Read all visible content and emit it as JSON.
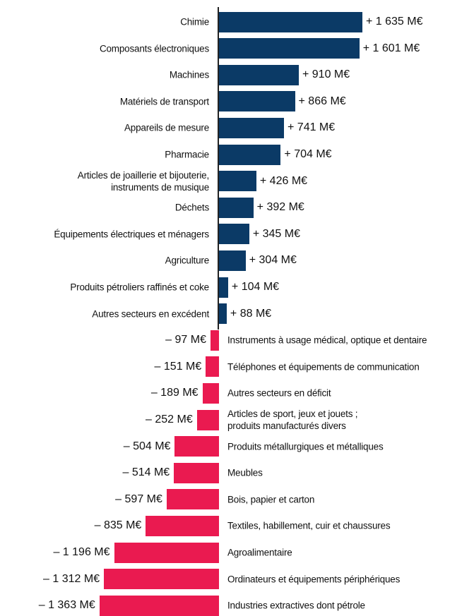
{
  "chart_data": {
    "type": "bar",
    "orientation": "horizontal",
    "color_positive": "#0b3a66",
    "color_negative": "#ea1a50",
    "categories": [
      "Chimie",
      "Composants électroniques",
      "Machines",
      "Matériels de transport",
      "Appareils de mesure",
      "Pharmacie",
      "Articles de joaillerie et bijouterie,\ninstruments de musique",
      "Déchets",
      "Équipements électriques et ménagers",
      "Agriculture",
      "Produits pétroliers raffinés et coke",
      "Autres secteurs en excédent",
      "Instruments à usage médical, optique et dentaire",
      "Téléphones et équipements de communication",
      "Autres secteurs en déficit",
      "Articles de sport, jeux et jouets ;\nproduits manufacturés divers",
      "Produits métallurgiques et métalliques",
      "Meubles",
      "Bois, papier et carton",
      "Textiles, habillement, cuir et chaussures",
      "Agroalimentaire",
      "Ordinateurs et équipements périphériques",
      "Industries extractives dont pétrole"
    ],
    "values": [
      1635,
      1601,
      910,
      866,
      741,
      704,
      426,
      392,
      345,
      304,
      104,
      88,
      -97,
      -151,
      -189,
      -252,
      -504,
      -514,
      -597,
      -835,
      -1196,
      -1312,
      -1363
    ],
    "value_labels": [
      "+ 1 635 M€",
      "+ 1 601 M€",
      "+ 910 M€",
      "+ 866 M€",
      "+ 741 M€",
      "+ 704 M€",
      "+ 426 M€",
      "+ 392 M€",
      "+ 345 M€",
      "+ 304 M€",
      "+ 104 M€",
      "+ 88 M€",
      "– 97 M€",
      "– 151 M€",
      "– 189 M€",
      "– 252 M€",
      "– 504 M€",
      "– 514 M€",
      "– 597 M€",
      "– 835 M€",
      "– 1 196 M€",
      "– 1 312 M€",
      "– 1 363 M€"
    ]
  }
}
